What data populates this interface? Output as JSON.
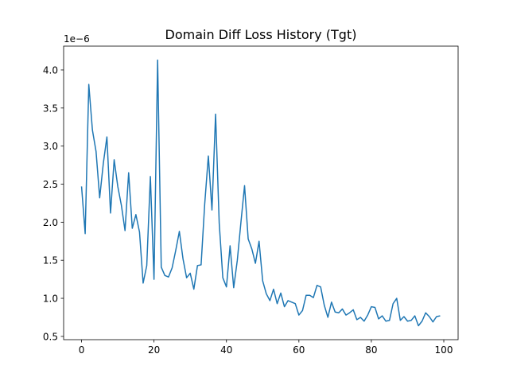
{
  "chart_data": {
    "type": "line",
    "title": "Domain Diff Loss History (Tgt)",
    "xlabel": "",
    "ylabel": "",
    "y_scale_label": "1e−6",
    "xlim": [
      -4.95,
      103.95
    ],
    "ylim": [
      0.457,
      4.313
    ],
    "x_ticks": [
      0,
      20,
      40,
      60,
      80,
      100
    ],
    "y_ticks": [
      0.5,
      1.0,
      1.5,
      2.0,
      2.5,
      3.0,
      3.5,
      4.0
    ],
    "x_tick_labels": [
      "0",
      "20",
      "40",
      "60",
      "80",
      "100"
    ],
    "y_tick_labels": [
      "0.5",
      "1.0",
      "1.5",
      "2.0",
      "2.5",
      "3.0",
      "3.5",
      "4.0"
    ],
    "grid": false,
    "series": [
      {
        "color": "#1f77b4",
        "x": [
          0,
          1,
          2,
          3,
          4,
          5,
          6,
          7,
          8,
          9,
          10,
          11,
          12,
          13,
          14,
          15,
          16,
          17,
          18,
          19,
          20,
          21,
          22,
          23,
          24,
          25,
          26,
          27,
          28,
          29,
          30,
          31,
          32,
          33,
          34,
          35,
          36,
          37,
          38,
          39,
          40,
          41,
          42,
          43,
          44,
          45,
          46,
          47,
          48,
          49,
          50,
          51,
          52,
          53,
          54,
          55,
          56,
          57,
          58,
          59,
          60,
          61,
          62,
          63,
          64,
          65,
          66,
          67,
          68,
          69,
          70,
          71,
          72,
          73,
          74,
          75,
          76,
          77,
          78,
          79,
          80,
          81,
          82,
          83,
          84,
          85,
          86,
          87,
          88,
          89,
          90,
          91,
          92,
          93,
          94,
          95,
          96,
          97,
          98,
          99
        ],
        "values": [
          2.47,
          1.85,
          3.81,
          3.21,
          2.93,
          2.32,
          2.77,
          3.12,
          2.12,
          2.82,
          2.47,
          2.22,
          1.89,
          2.65,
          1.92,
          2.1,
          1.87,
          1.2,
          1.43,
          2.6,
          1.25,
          4.13,
          1.41,
          1.3,
          1.28,
          1.4,
          1.63,
          1.88,
          1.52,
          1.27,
          1.33,
          1.12,
          1.43,
          1.44,
          2.24,
          2.87,
          2.16,
          3.42,
          1.99,
          1.27,
          1.15,
          1.69,
          1.14,
          1.5,
          2.0,
          2.48,
          1.78,
          1.65,
          1.46,
          1.75,
          1.23,
          1.06,
          0.97,
          1.12,
          0.93,
          1.07,
          0.89,
          0.97,
          0.95,
          0.93,
          0.78,
          0.84,
          1.04,
          1.04,
          1.01,
          1.17,
          1.15,
          0.91,
          0.75,
          0.95,
          0.82,
          0.81,
          0.86,
          0.78,
          0.81,
          0.85,
          0.72,
          0.75,
          0.7,
          0.78,
          0.89,
          0.88,
          0.73,
          0.77,
          0.7,
          0.71,
          0.93,
          1.0,
          0.71,
          0.76,
          0.7,
          0.71,
          0.77,
          0.64,
          0.7,
          0.81,
          0.76,
          0.69,
          0.76,
          0.77
        ]
      }
    ]
  }
}
